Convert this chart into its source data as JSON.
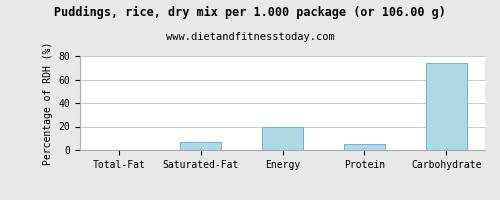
{
  "title": "Puddings, rice, dry mix per 1.000 package (or 106.00 g)",
  "subtitle": "www.dietandfitnesstoday.com",
  "categories": [
    "Total-Fat",
    "Saturated-Fat",
    "Energy",
    "Protein",
    "Carbohydrate"
  ],
  "values": [
    0.0,
    7.0,
    20.0,
    5.0,
    74.0
  ],
  "bar_color": "#add8e6",
  "bar_edge_color": "#7ab0c8",
  "ylabel": "Percentage of RDH (%)",
  "ylim": [
    0,
    80
  ],
  "yticks": [
    0,
    20,
    40,
    60,
    80
  ],
  "background_color": "#e8e8e8",
  "plot_bg_color": "#ffffff",
  "grid_color": "#cccccc",
  "title_fontsize": 8.5,
  "subtitle_fontsize": 7.5,
  "ylabel_fontsize": 7,
  "tick_fontsize": 7,
  "bar_width": 0.5
}
